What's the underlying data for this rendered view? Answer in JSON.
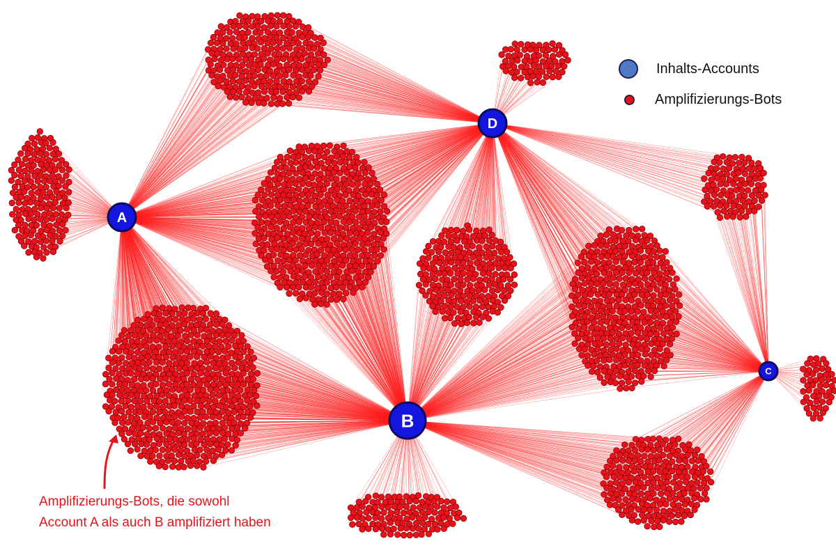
{
  "legend": {
    "accounts_label": "Inhalts-Accounts",
    "bots_label": "Amplifizierungs-Bots"
  },
  "annotation": {
    "line1": "Amplifizierungs-Bots, die sowohl",
    "line2": "Account A als auch B amplifiziert haben"
  },
  "colors": {
    "account_fill": "#1515e0",
    "account_stroke": "#0b0b5a",
    "bot_fill": "#e8131a",
    "bot_stroke": "#8a0008",
    "edge": "#ff1a1a",
    "annotation": "#e8131a",
    "legend_account": "#4f79c7"
  },
  "accounts": [
    {
      "id": "A",
      "label": "A"
    },
    {
      "id": "B",
      "label": "B"
    },
    {
      "id": "C",
      "label": "C"
    },
    {
      "id": "D",
      "label": "D"
    }
  ],
  "bot_clusters": [
    {
      "id": "c1",
      "connects_to": [
        "A",
        "D"
      ]
    },
    {
      "id": "c2",
      "connects_to": [
        "D"
      ]
    },
    {
      "id": "c3",
      "connects_to": [
        "A"
      ]
    },
    {
      "id": "c4",
      "connects_to": [
        "A",
        "D",
        "B"
      ]
    },
    {
      "id": "c5",
      "connects_to": [
        "D",
        "C"
      ]
    },
    {
      "id": "c6",
      "connects_to": [
        "D",
        "B"
      ]
    },
    {
      "id": "c7",
      "connects_to": [
        "D",
        "B",
        "C"
      ]
    },
    {
      "id": "c8",
      "connects_to": [
        "A",
        "B"
      ]
    },
    {
      "id": "c9",
      "connects_to": [
        "C"
      ]
    },
    {
      "id": "c10",
      "connects_to": [
        "B"
      ]
    },
    {
      "id": "c11",
      "connects_to": [
        "B",
        "C"
      ]
    }
  ]
}
